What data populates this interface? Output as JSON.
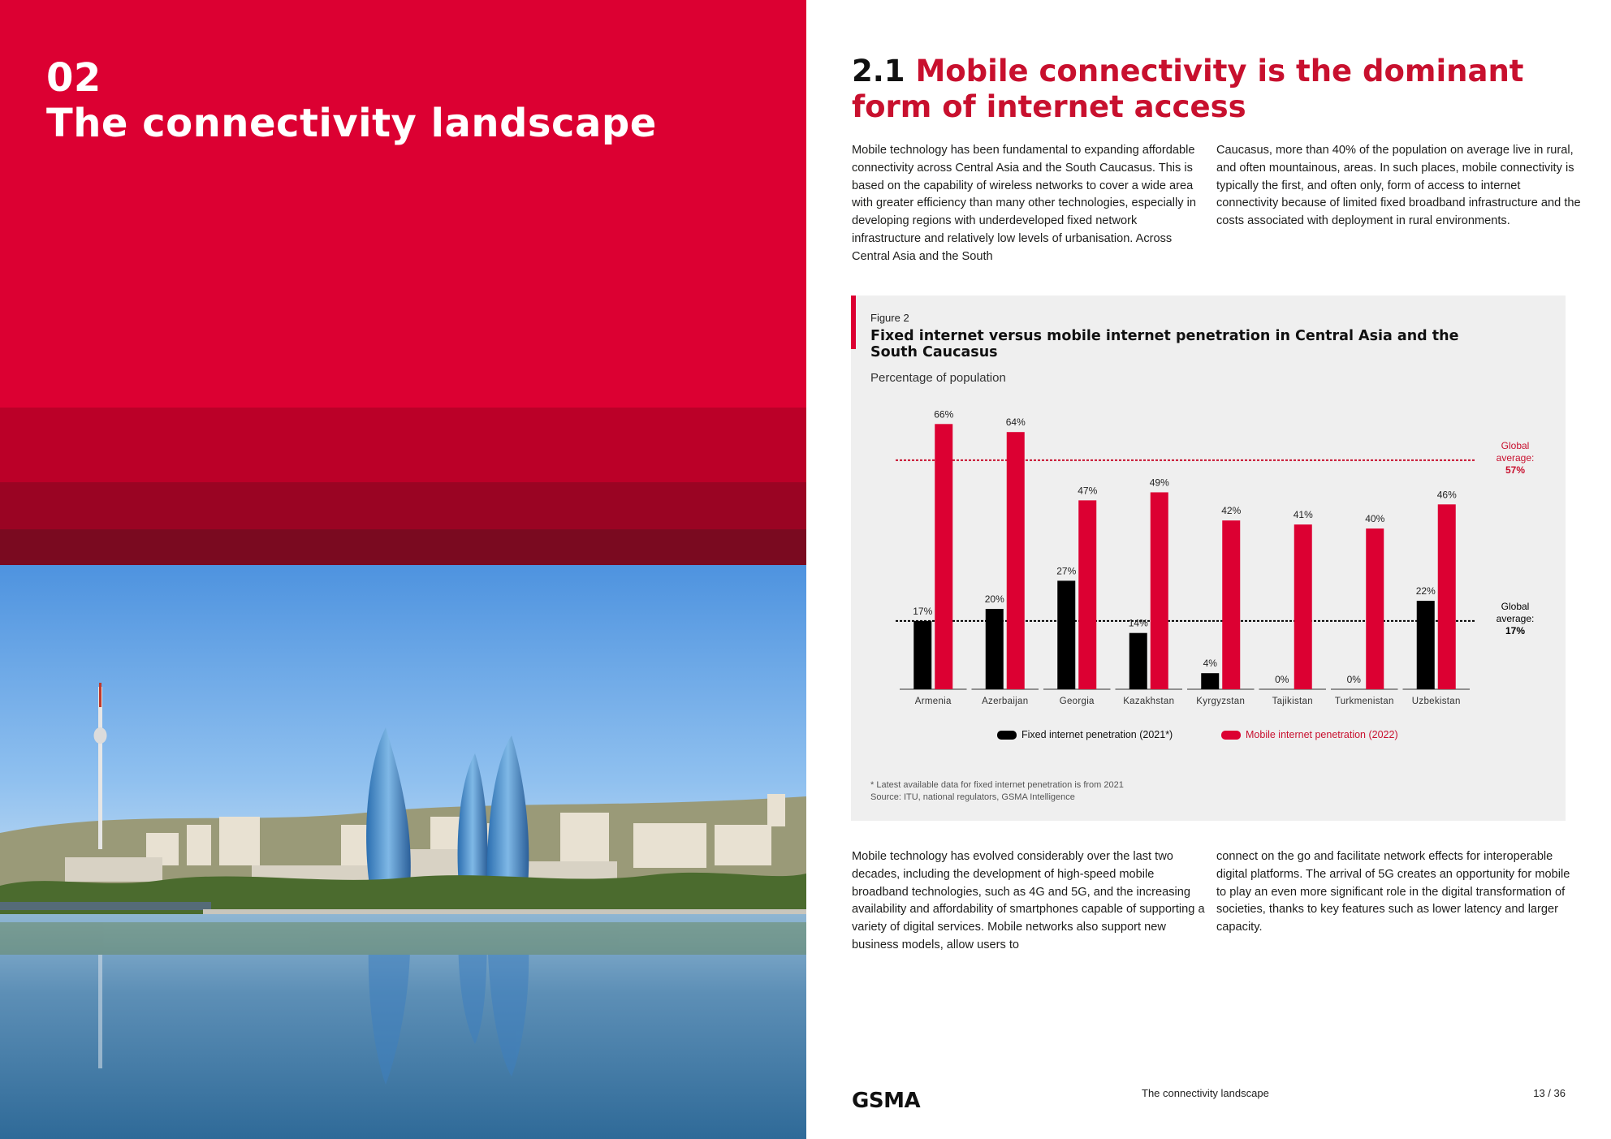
{
  "left_page": {
    "section_number": "02",
    "section_title": "The connectivity landscape"
  },
  "heading": {
    "number": "2.1",
    "title": "Mobile connectivity is the dominant form of internet access"
  },
  "intro": {
    "col1": "Mobile technology has been fundamental to expanding affordable connectivity across Central Asia and the South Caucasus. This is based on the capability of wireless networks to cover a wide area with greater efficiency than many other technologies, especially in developing regions with underdeveloped fixed network infrastructure and relatively low levels of urbanisation. Across Central Asia and the South",
    "col2": "Caucasus, more than 40% of the population on average live in rural, and often mountainous, areas. In such places, mobile connectivity is typically the first, and often only, form of access to internet connectivity because of limited fixed broadband infrastructure and the costs associated with deployment in rural environments."
  },
  "figure": {
    "label": "Figure 2",
    "title": "Fixed internet versus mobile internet penetration in Central Asia and the South Caucasus",
    "subtitle": "Percentage of population",
    "footnote": "* Latest available data for fixed internet penetration is from 2021",
    "source": "Source: ITU, national regulators, GSMA Intelligence"
  },
  "chart_data": {
    "type": "bar",
    "title": "Fixed internet versus mobile internet penetration in Central Asia and the South Caucasus",
    "ylabel": "Percentage of population",
    "xlabel": "",
    "ylim": [
      0,
      70
    ],
    "categories": [
      "Armenia",
      "Azerbaijan",
      "Georgia",
      "Kazakhstan",
      "Kyrgyzstan",
      "Tajikistan",
      "Turkmenistan",
      "Uzbekistan"
    ],
    "series": [
      {
        "name": "Fixed internet penetration (2021*)",
        "color": "#000000",
        "values": [
          17,
          20,
          27,
          14,
          4,
          0,
          0,
          22
        ],
        "labels": [
          "17%",
          "20%",
          "27%",
          "14%",
          "4%",
          "0%",
          "0%",
          "22%"
        ]
      },
      {
        "name": "Mobile internet penetration (2022)",
        "color": "#dc0032",
        "values": [
          66,
          64,
          47,
          49,
          42,
          41,
          40,
          46
        ],
        "labels": [
          "66%",
          "64%",
          "47%",
          "49%",
          "42%",
          "41%",
          "40%",
          "46%"
        ]
      }
    ],
    "reference_lines": [
      {
        "label_line1": "Global",
        "label_line2": "average:",
        "value_label": "57%",
        "value": 57,
        "color": "#c8102e"
      },
      {
        "label_line1": "Global",
        "label_line2": "average:",
        "value_label": "17%",
        "value": 17,
        "color": "#000000"
      }
    ],
    "legend_position": "bottom"
  },
  "body": {
    "col1": "Mobile technology has evolved considerably over the last two decades, including the development of high-speed mobile broadband technologies, such as 4G and 5G, and the increasing availability and affordability of smartphones capable of supporting a variety of digital services. Mobile networks also support new business models, allow users to",
    "col2": "connect on the go and facilitate network effects for interoperable digital platforms. The arrival of 5G creates an opportunity for mobile to play an even more significant role in the digital transformation of societies, thanks to key features such as lower latency and larger capacity."
  },
  "footer": {
    "logo": "GSMA",
    "section": "The connectivity landscape",
    "page": "13 / 36"
  },
  "colors": {
    "brand_red": "#dc0032",
    "heading_red": "#c8102e"
  }
}
